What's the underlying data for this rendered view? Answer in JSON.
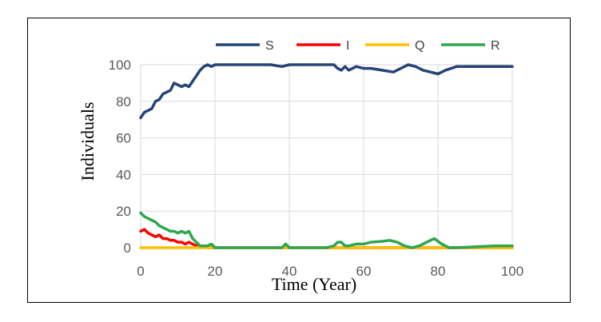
{
  "chart_data": {
    "type": "line",
    "xlabel": "Time (Year)",
    "ylabel": "Individuals",
    "xlim": [
      0,
      100
    ],
    "ylim": [
      0,
      100
    ],
    "xticks": [
      "0",
      "20",
      "40",
      "60",
      "80",
      "100"
    ],
    "yticks": [
      "0",
      "20",
      "40",
      "60",
      "80",
      "100"
    ],
    "grid": "horizontal and vertical",
    "legend_position": "top",
    "series": [
      {
        "name": "S",
        "color": "#264478",
        "x": [
          0,
          1,
          2,
          3,
          4,
          5,
          6,
          7,
          8,
          9,
          10,
          11,
          12,
          13,
          14,
          15,
          16,
          17,
          18,
          19,
          20,
          22,
          25,
          30,
          35,
          38,
          40,
          45,
          50,
          52,
          53,
          54,
          55,
          56,
          57,
          58,
          60,
          62,
          65,
          68,
          70,
          72,
          74,
          76,
          78,
          80,
          82,
          85,
          90,
          95,
          100
        ],
        "y": [
          71,
          74,
          75,
          76,
          80,
          81,
          84,
          85,
          86,
          90,
          89,
          88,
          89,
          88,
          91,
          94,
          97,
          99,
          100,
          99,
          100,
          100,
          100,
          100,
          100,
          99,
          100,
          100,
          100,
          100,
          98,
          97,
          99,
          97,
          98,
          99,
          98,
          98,
          97,
          96,
          98,
          100,
          99,
          97,
          96,
          95,
          97,
          99,
          99,
          99,
          99
        ]
      },
      {
        "name": "I",
        "color": "#ff0000",
        "x": [
          0,
          1,
          2,
          3,
          4,
          5,
          6,
          7,
          8,
          9,
          10,
          11,
          12,
          13,
          14,
          15,
          16,
          17,
          18,
          19,
          20,
          30,
          40,
          50,
          60,
          70,
          80,
          90,
          100
        ],
        "y": [
          9,
          10,
          8,
          7,
          6,
          7,
          5,
          5,
          4,
          4,
          3,
          3,
          2,
          3,
          2,
          1,
          1,
          1,
          0,
          0,
          0,
          0,
          0,
          0,
          0,
          0,
          0,
          0,
          0
        ]
      },
      {
        "name": "Q",
        "color": "#ffc000",
        "x": [
          0,
          100
        ],
        "y": [
          0,
          0
        ]
      },
      {
        "name": "R",
        "color": "#2ea650",
        "x": [
          0,
          1,
          2,
          3,
          4,
          5,
          6,
          7,
          8,
          9,
          10,
          11,
          12,
          13,
          14,
          15,
          16,
          17,
          18,
          19,
          20,
          22,
          25,
          30,
          35,
          38,
          39,
          40,
          42,
          50,
          52,
          53,
          54,
          55,
          56,
          58,
          60,
          62,
          65,
          67,
          69,
          71,
          73,
          75,
          77,
          79,
          81,
          83,
          85,
          90,
          95,
          100
        ],
        "y": [
          19,
          17,
          16,
          15,
          14,
          12,
          11,
          10,
          9,
          9,
          8,
          9,
          8,
          9,
          5,
          3,
          1,
          1,
          1,
          2,
          0,
          0,
          0,
          0,
          0,
          0,
          2,
          0,
          0,
          0,
          1,
          3,
          3,
          1,
          1,
          2,
          2,
          3,
          3.5,
          4,
          3,
          1,
          0,
          1,
          3,
          5,
          2,
          0,
          0,
          0.5,
          1,
          1
        ]
      }
    ]
  }
}
